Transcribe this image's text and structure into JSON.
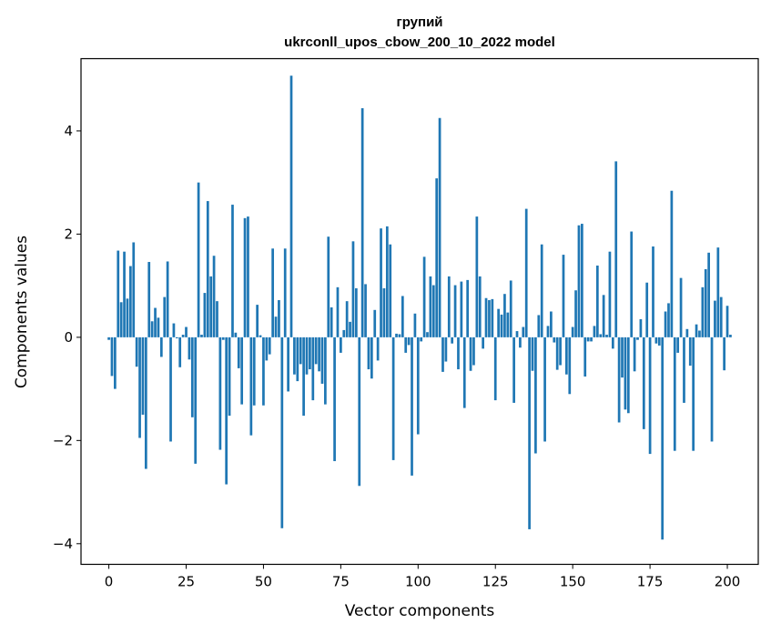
{
  "chart_data": {
    "type": "bar",
    "title": "групий",
    "subtitle": "ukrconll_upos_cbow_200_10_2022 model",
    "xlabel": "Vector components",
    "ylabel": "Components values",
    "xlim": [
      -9,
      210
    ],
    "ylim": [
      -4.4,
      5.4
    ],
    "xticks": [
      0,
      25,
      50,
      75,
      100,
      125,
      150,
      175,
      200
    ],
    "yticks": [
      -4,
      -2,
      0,
      2,
      4
    ],
    "xtick_labels": [
      "0",
      "25",
      "50",
      "75",
      "100",
      "125",
      "150",
      "175",
      "200"
    ],
    "ytick_labels": [
      "−4",
      "−2",
      "0",
      "2",
      "4"
    ],
    "grid": false,
    "bar_color": "#1f77b4",
    "series": [
      {
        "values": [
          -0.05,
          -0.75,
          -1.0,
          1.68,
          0.68,
          1.66,
          0.75,
          1.38,
          1.84,
          -0.57,
          -1.95,
          -1.5,
          -2.55,
          1.46,
          0.31,
          0.57,
          0.38,
          -0.38,
          0.78,
          1.47,
          -2.02,
          0.27,
          -0.02,
          -0.58,
          0.05,
          0.2,
          -0.43,
          -1.55,
          -2.45,
          3.0,
          0.05,
          0.86,
          2.64,
          1.18,
          1.58,
          0.7,
          -2.18,
          -0.05,
          -2.85,
          -1.52,
          2.57,
          0.09,
          -0.6,
          -1.3,
          2.31,
          2.34,
          -1.9,
          -1.32,
          0.63,
          0.04,
          -1.32,
          -0.45,
          -0.33,
          1.72,
          0.4,
          0.72,
          -3.7,
          1.72,
          -1.05,
          5.07,
          -0.72,
          -0.85,
          -0.52,
          -1.52,
          -0.72,
          -0.62,
          -1.22,
          -0.52,
          -0.66,
          -0.9,
          -1.3,
          1.95,
          0.58,
          -2.4,
          0.97,
          -0.3,
          0.14,
          0.7,
          0.3,
          1.86,
          0.95,
          -2.88,
          4.44,
          1.03,
          -0.62,
          -0.8,
          0.53,
          -0.45,
          2.11,
          0.95,
          2.15,
          1.8,
          -2.38,
          0.07,
          0.06,
          0.8,
          -0.3,
          -0.15,
          -2.68,
          0.46,
          -1.88,
          -0.08,
          1.56,
          0.1,
          1.18,
          1.01,
          3.08,
          4.25,
          -0.67,
          -0.47,
          1.18,
          -0.12,
          1.01,
          -0.62,
          1.08,
          -1.37,
          1.11,
          -0.65,
          -0.54,
          2.34,
          1.18,
          -0.22,
          0.76,
          0.72,
          0.74,
          -1.22,
          0.55,
          0.44,
          0.84,
          0.48,
          1.1,
          -1.27,
          0.12,
          -0.2,
          0.2,
          2.49,
          -3.72,
          -0.65,
          -2.25,
          0.43,
          1.8,
          -2.02,
          0.22,
          0.5,
          -0.1,
          -0.63,
          -0.54,
          1.6,
          -0.72,
          -1.1,
          0.2,
          0.91,
          2.17,
          2.2,
          -0.76,
          -0.08,
          -0.08,
          0.22,
          1.39,
          0.06,
          0.82,
          0.05,
          1.66,
          -0.22,
          3.41,
          -1.65,
          -0.78,
          -1.4,
          -1.47,
          2.05,
          -0.66,
          -0.05,
          0.35,
          -1.78,
          1.06,
          -2.26,
          1.76,
          -0.12,
          -0.16,
          -3.92,
          0.5,
          0.66,
          2.84,
          -2.2,
          -0.3,
          1.15,
          -1.27,
          0.16,
          -0.55,
          -2.2,
          0.25,
          0.13,
          0.97,
          1.32,
          1.64,
          -2.02,
          0.71,
          1.74,
          0.78,
          -0.64,
          0.61,
          0.05
        ]
      }
    ]
  }
}
